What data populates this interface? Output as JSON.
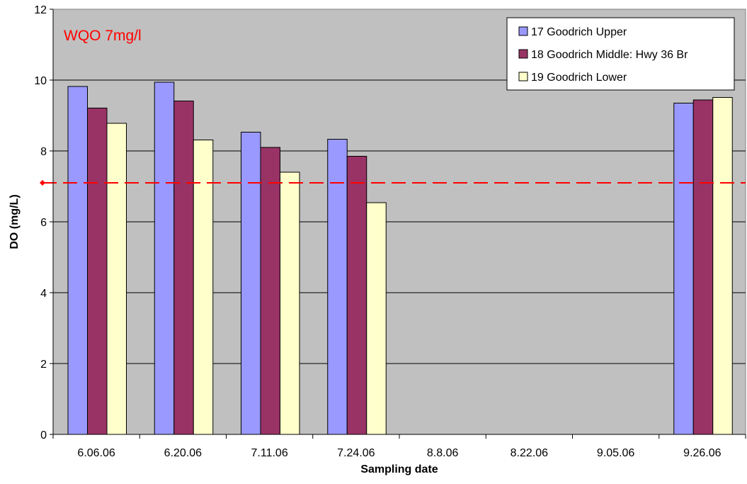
{
  "chart_data": {
    "type": "bar",
    "title": "",
    "xlabel": "Sampling date",
    "ylabel": "DO (mg/L)",
    "ylim": [
      0,
      12
    ],
    "yticks": [
      0,
      2,
      4,
      6,
      8,
      10,
      12
    ],
    "grid": true,
    "legend_position": "top-right",
    "categories": [
      "6.06.06",
      "6.20.06",
      "7.11.06",
      "7.24.06",
      "8.8.06",
      "8.22.06",
      "9.05.06",
      "9.26.06"
    ],
    "series": [
      {
        "name": "17 Goodrich Upper",
        "color": "#9999ff",
        "values": [
          9.82,
          9.94,
          8.53,
          8.33,
          null,
          null,
          null,
          9.35
        ]
      },
      {
        "name": "18 Goodrich Middle: Hwy 36 Br",
        "color": "#993366",
        "values": [
          9.21,
          9.41,
          8.1,
          7.85,
          null,
          null,
          null,
          9.44
        ]
      },
      {
        "name": "19 Goodrich Lower",
        "color": "#ffffcc",
        "values": [
          8.78,
          8.31,
          7.4,
          6.54,
          null,
          null,
          null,
          9.51
        ]
      }
    ],
    "reference_line": {
      "value": 7.1,
      "color": "#ff0000"
    },
    "annotation": {
      "text": "WQO 7mg/l",
      "color": "#ff0000"
    },
    "plot_background": "#c0c0c0"
  }
}
